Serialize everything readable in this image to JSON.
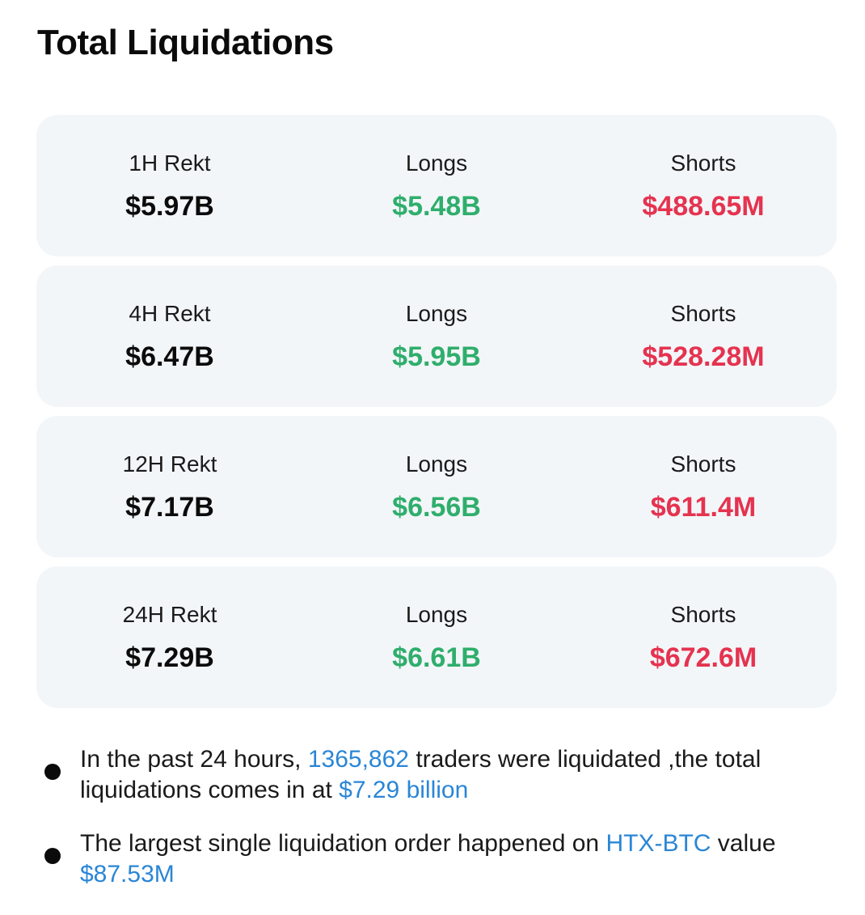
{
  "title": "Total Liquidations",
  "rows": [
    {
      "period": "1H Rekt",
      "total": "$5.97B",
      "longs_label": "Longs",
      "longs": "$5.48B",
      "shorts_label": "Shorts",
      "shorts": "$488.65M"
    },
    {
      "period": "4H Rekt",
      "total": "$6.47B",
      "longs_label": "Longs",
      "longs": "$5.95B",
      "shorts_label": "Shorts",
      "shorts": "$528.28M"
    },
    {
      "period": "12H Rekt",
      "total": "$7.17B",
      "longs_label": "Longs",
      "longs": "$6.56B",
      "shorts_label": "Shorts",
      "shorts": "$611.4M"
    },
    {
      "period": "24H Rekt",
      "total": "$7.29B",
      "longs_label": "Longs",
      "longs": "$6.61B",
      "shorts_label": "Shorts",
      "shorts": "$672.6M"
    }
  ],
  "notes": {
    "first": {
      "part1": "In the past 24 hours, ",
      "traders": "1365,862",
      "part2": " traders were liquidated ,the total liquidations comes in at ",
      "amount": "$7.29 billion"
    },
    "second": {
      "part1": "The largest single liquidation order happened on ",
      "exchange": "HTX-BTC",
      "part2": " value ",
      "amount": "$87.53M"
    }
  },
  "colors": {
    "long": "#2fae6c",
    "short": "#e5334f",
    "highlight": "#2a86d6",
    "card_bg": "#f3f6f9"
  }
}
